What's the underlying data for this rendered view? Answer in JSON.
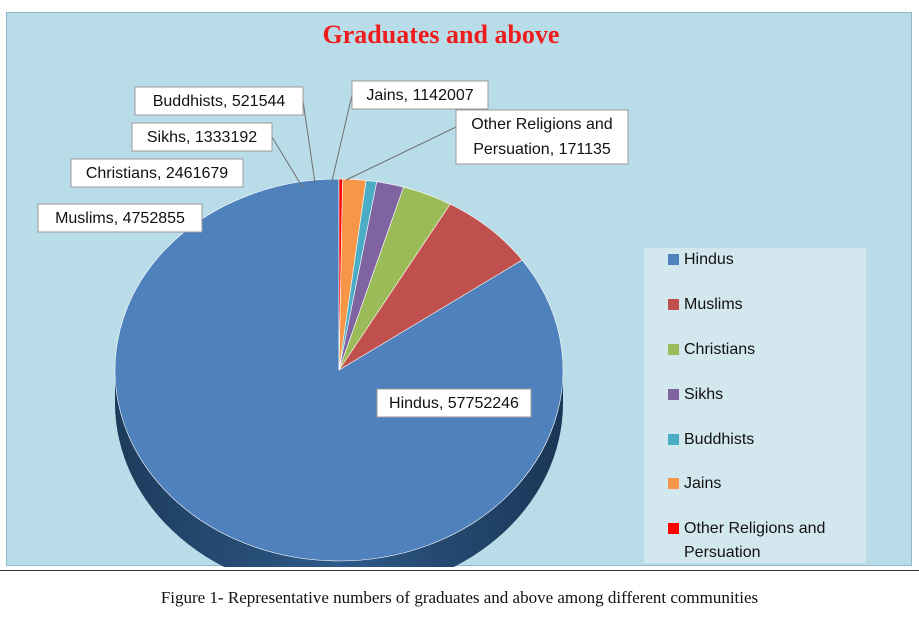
{
  "chart_data": {
    "type": "pie",
    "title": "Graduates and above",
    "slices": [
      {
        "label": "Hindus",
        "value": 57752246,
        "color": "#4f81bd",
        "data_label": "Hindus, 57752246"
      },
      {
        "label": "Muslims",
        "value": 4752855,
        "color": "#c0504d",
        "data_label": "Muslims, 4752855"
      },
      {
        "label": "Christians",
        "value": 2461679,
        "color": "#9bbb59",
        "data_label": "Christians, 2461679"
      },
      {
        "label": "Sikhs",
        "value": 1333192,
        "color": "#8064a2",
        "data_label": "Sikhs, 1333192"
      },
      {
        "label": "Buddhists",
        "value": 521544,
        "color": "#4bacc6",
        "data_label": "Buddhists, 521544"
      },
      {
        "label": "Jains",
        "value": 1142007,
        "color": "#f79646",
        "data_label": "Jains, 1142007"
      },
      {
        "label": "Other Religions and Persuation",
        "value": 171135,
        "color": "#ff0000",
        "data_label_lines": [
          "Other Religions and",
          "Persuation, 171135"
        ]
      }
    ],
    "legend": {
      "placement": "right",
      "items": [
        "Hindus",
        "Muslims",
        "Christians",
        "Sikhs",
        "Buddhists",
        "Jains",
        "Other Religions and Persuation"
      ]
    }
  },
  "caption": "Figure 1- Representative numbers of graduates and above among different communities"
}
